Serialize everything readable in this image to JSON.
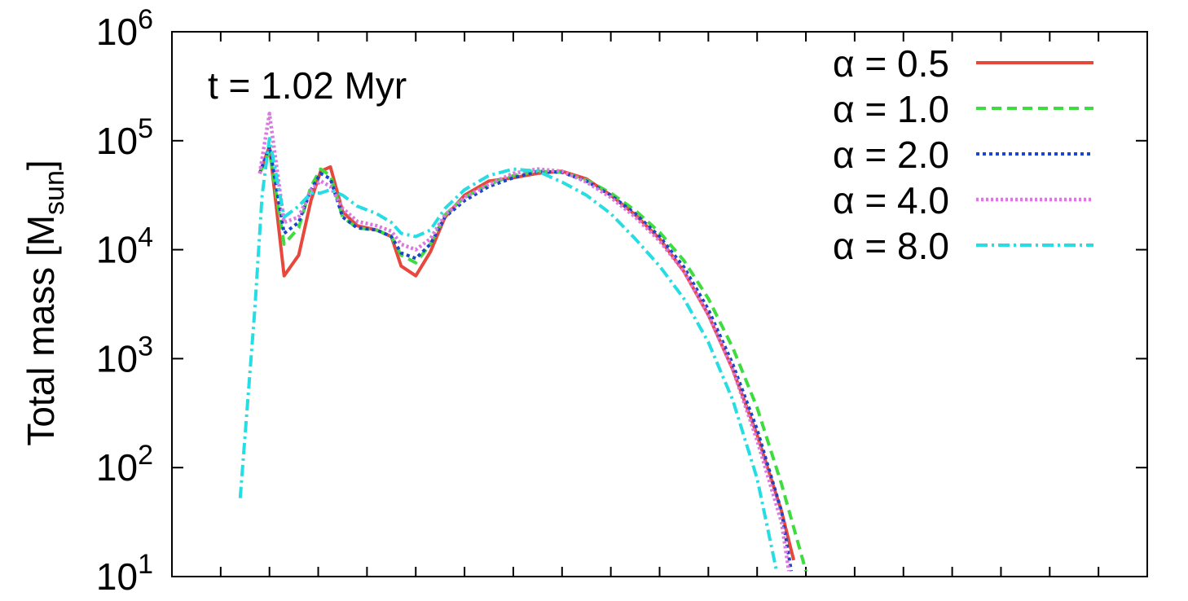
{
  "chart_data": {
    "type": "line",
    "title": "",
    "xlabel": "",
    "ylabel": "Total mass [M",
    "ylabel_sub": "sun",
    "ylabel_close": "]",
    "ylog": true,
    "ylim": [
      1,
      6
    ],
    "xlim": [
      0,
      20
    ],
    "xticks": [
      1,
      2,
      3,
      4,
      5,
      6,
      7,
      8,
      9,
      10,
      11,
      12,
      13,
      14,
      15,
      16,
      17,
      18,
      19
    ],
    "yticks": [
      {
        "exp": 1,
        "base": "10",
        "sup": "1"
      },
      {
        "exp": 2,
        "base": "10",
        "sup": "2"
      },
      {
        "exp": 3,
        "base": "10",
        "sup": "3"
      },
      {
        "exp": 4,
        "base": "10",
        "sup": "4"
      },
      {
        "exp": 5,
        "base": "10",
        "sup": "5"
      },
      {
        "exp": 6,
        "base": "10",
        "sup": "6"
      }
    ],
    "grid": false,
    "legend_position": "top-right",
    "annotation": "t = 1.02 Myr",
    "series": [
      {
        "name": "α = 0.5",
        "color": "#e8473c",
        "dash": "",
        "width": 4,
        "points": [
          [
            1.8,
            4.7
          ],
          [
            2.0,
            4.95
          ],
          [
            2.3,
            3.76
          ],
          [
            2.6,
            3.95
          ],
          [
            2.85,
            4.45
          ],
          [
            3.05,
            4.72
          ],
          [
            3.25,
            4.76
          ],
          [
            3.5,
            4.35
          ],
          [
            3.8,
            4.22
          ],
          [
            4.2,
            4.18
          ],
          [
            4.5,
            4.12
          ],
          [
            4.7,
            3.85
          ],
          [
            5.0,
            3.76
          ],
          [
            5.3,
            3.98
          ],
          [
            5.6,
            4.3
          ],
          [
            6.0,
            4.5
          ],
          [
            6.5,
            4.63
          ],
          [
            7.0,
            4.66
          ],
          [
            7.5,
            4.7
          ],
          [
            8.0,
            4.72
          ],
          [
            8.5,
            4.65
          ],
          [
            9.0,
            4.5
          ],
          [
            9.5,
            4.32
          ],
          [
            10.0,
            4.1
          ],
          [
            10.5,
            3.8
          ],
          [
            11.0,
            3.4
          ],
          [
            11.5,
            2.9
          ],
          [
            12.0,
            2.3
          ],
          [
            12.5,
            1.6
          ],
          [
            12.75,
            1.15
          ]
        ]
      },
      {
        "name": "α = 1.0",
        "color": "#3fdc3f",
        "dash": "12,7",
        "width": 4,
        "points": [
          [
            1.8,
            4.7
          ],
          [
            2.0,
            4.9
          ],
          [
            2.3,
            4.05
          ],
          [
            2.6,
            4.2
          ],
          [
            2.85,
            4.58
          ],
          [
            3.05,
            4.74
          ],
          [
            3.25,
            4.68
          ],
          [
            3.5,
            4.3
          ],
          [
            3.8,
            4.2
          ],
          [
            4.2,
            4.18
          ],
          [
            4.5,
            4.12
          ],
          [
            4.7,
            3.95
          ],
          [
            5.0,
            3.88
          ],
          [
            5.3,
            4.05
          ],
          [
            5.6,
            4.32
          ],
          [
            6.0,
            4.48
          ],
          [
            6.5,
            4.6
          ],
          [
            7.0,
            4.68
          ],
          [
            7.5,
            4.72
          ],
          [
            8.0,
            4.71
          ],
          [
            8.5,
            4.64
          ],
          [
            9.0,
            4.52
          ],
          [
            9.5,
            4.36
          ],
          [
            10.0,
            4.16
          ],
          [
            10.5,
            3.9
          ],
          [
            11.0,
            3.55
          ],
          [
            11.5,
            3.1
          ],
          [
            12.0,
            2.55
          ],
          [
            12.5,
            1.85
          ],
          [
            13.0,
            1.05
          ]
        ]
      },
      {
        "name": "α = 2.0",
        "color": "#1b47c7",
        "dash": "4,4",
        "width": 4,
        "points": [
          [
            1.8,
            4.7
          ],
          [
            2.0,
            4.95
          ],
          [
            2.3,
            4.15
          ],
          [
            2.6,
            4.25
          ],
          [
            2.85,
            4.55
          ],
          [
            3.05,
            4.7
          ],
          [
            3.25,
            4.65
          ],
          [
            3.5,
            4.3
          ],
          [
            3.8,
            4.2
          ],
          [
            4.2,
            4.18
          ],
          [
            4.5,
            4.12
          ],
          [
            4.7,
            3.97
          ],
          [
            5.0,
            3.92
          ],
          [
            5.3,
            4.05
          ],
          [
            5.6,
            4.3
          ],
          [
            6.0,
            4.45
          ],
          [
            6.5,
            4.58
          ],
          [
            7.0,
            4.66
          ],
          [
            7.5,
            4.72
          ],
          [
            8.0,
            4.71
          ],
          [
            8.5,
            4.63
          ],
          [
            9.0,
            4.5
          ],
          [
            9.5,
            4.33
          ],
          [
            10.0,
            4.12
          ],
          [
            10.5,
            3.84
          ],
          [
            11.0,
            3.45
          ],
          [
            11.5,
            2.95
          ],
          [
            12.0,
            2.35
          ],
          [
            12.5,
            1.6
          ],
          [
            12.7,
            1.05
          ]
        ]
      },
      {
        "name": "α = 4.0",
        "color": "#dc78e0",
        "dash": "3,3",
        "width": 4.5,
        "points": [
          [
            1.8,
            4.7
          ],
          [
            2.0,
            5.25
          ],
          [
            2.3,
            4.25
          ],
          [
            2.6,
            4.3
          ],
          [
            2.85,
            4.55
          ],
          [
            3.05,
            4.63
          ],
          [
            3.25,
            4.58
          ],
          [
            3.5,
            4.38
          ],
          [
            3.8,
            4.26
          ],
          [
            4.2,
            4.22
          ],
          [
            4.5,
            4.17
          ],
          [
            4.7,
            4.05
          ],
          [
            5.0,
            4.0
          ],
          [
            5.3,
            4.1
          ],
          [
            5.6,
            4.32
          ],
          [
            6.0,
            4.48
          ],
          [
            6.5,
            4.6
          ],
          [
            7.0,
            4.7
          ],
          [
            7.5,
            4.74
          ],
          [
            8.0,
            4.72
          ],
          [
            8.5,
            4.62
          ],
          [
            9.0,
            4.48
          ],
          [
            9.5,
            4.3
          ],
          [
            10.0,
            4.08
          ],
          [
            10.5,
            3.8
          ],
          [
            11.0,
            3.4
          ],
          [
            11.5,
            2.9
          ],
          [
            12.0,
            2.25
          ],
          [
            12.5,
            1.5
          ],
          [
            12.65,
            1.05
          ]
        ]
      },
      {
        "name": "α = 8.0",
        "color": "#26dde4",
        "dash": "14,5,3,5",
        "width": 4,
        "points": [
          [
            1.4,
            1.72
          ],
          [
            1.7,
            3.45
          ],
          [
            1.85,
            4.5
          ],
          [
            2.0,
            5.02
          ],
          [
            2.3,
            4.3
          ],
          [
            2.6,
            4.4
          ],
          [
            2.85,
            4.52
          ],
          [
            3.05,
            4.52
          ],
          [
            3.25,
            4.55
          ],
          [
            3.5,
            4.5
          ],
          [
            3.8,
            4.4
          ],
          [
            4.2,
            4.33
          ],
          [
            4.5,
            4.25
          ],
          [
            4.7,
            4.15
          ],
          [
            5.0,
            4.12
          ],
          [
            5.3,
            4.18
          ],
          [
            5.6,
            4.38
          ],
          [
            6.0,
            4.55
          ],
          [
            6.5,
            4.68
          ],
          [
            7.0,
            4.74
          ],
          [
            7.5,
            4.72
          ],
          [
            8.0,
            4.62
          ],
          [
            8.5,
            4.5
          ],
          [
            9.0,
            4.33
          ],
          [
            9.5,
            4.1
          ],
          [
            10.0,
            3.85
          ],
          [
            10.5,
            3.55
          ],
          [
            11.0,
            3.15
          ],
          [
            11.5,
            2.62
          ],
          [
            12.0,
            1.9
          ],
          [
            12.4,
            1.05
          ]
        ]
      }
    ]
  }
}
